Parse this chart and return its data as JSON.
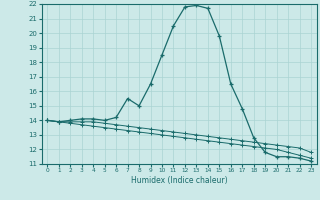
{
  "title": "",
  "xlabel": "Humidex (Indice chaleur)",
  "xlim": [
    -0.5,
    23.5
  ],
  "ylim": [
    11,
    22
  ],
  "xticks": [
    0,
    1,
    2,
    3,
    4,
    5,
    6,
    7,
    8,
    9,
    10,
    11,
    12,
    13,
    14,
    15,
    16,
    17,
    18,
    19,
    20,
    21,
    22,
    23
  ],
  "yticks": [
    11,
    12,
    13,
    14,
    15,
    16,
    17,
    18,
    19,
    20,
    21,
    22
  ],
  "background_color": "#cce9e8",
  "grid_color": "#aad4d3",
  "line_color": "#1a6b6b",
  "line1_x": [
    0,
    1,
    2,
    3,
    4,
    5,
    6,
    7,
    8,
    9,
    10,
    11,
    12,
    13,
    14,
    15,
    16,
    17,
    18,
    19,
    20,
    21,
    22,
    23
  ],
  "line1_y": [
    14.0,
    13.9,
    14.0,
    14.1,
    14.1,
    14.0,
    14.2,
    15.5,
    15.0,
    16.5,
    18.5,
    20.5,
    21.8,
    21.9,
    21.7,
    19.8,
    16.5,
    14.8,
    12.8,
    11.8,
    11.5,
    11.5,
    11.4,
    11.2
  ],
  "line2_x": [
    0,
    1,
    2,
    3,
    4,
    5,
    6,
    7,
    8,
    9,
    10,
    11,
    12,
    13,
    14,
    15,
    16,
    17,
    18,
    19,
    20,
    21,
    22,
    23
  ],
  "line2_y": [
    14.0,
    13.9,
    13.9,
    13.9,
    13.9,
    13.8,
    13.7,
    13.6,
    13.5,
    13.4,
    13.3,
    13.2,
    13.1,
    13.0,
    12.9,
    12.8,
    12.7,
    12.6,
    12.5,
    12.4,
    12.3,
    12.2,
    12.1,
    11.8
  ],
  "line3_x": [
    0,
    1,
    2,
    3,
    4,
    5,
    6,
    7,
    8,
    9,
    10,
    11,
    12,
    13,
    14,
    15,
    16,
    17,
    18,
    19,
    20,
    21,
    22,
    23
  ],
  "line3_y": [
    14.0,
    13.9,
    13.8,
    13.7,
    13.6,
    13.5,
    13.4,
    13.3,
    13.2,
    13.1,
    13.0,
    12.9,
    12.8,
    12.7,
    12.6,
    12.5,
    12.4,
    12.3,
    12.2,
    12.1,
    12.0,
    11.8,
    11.6,
    11.4
  ]
}
